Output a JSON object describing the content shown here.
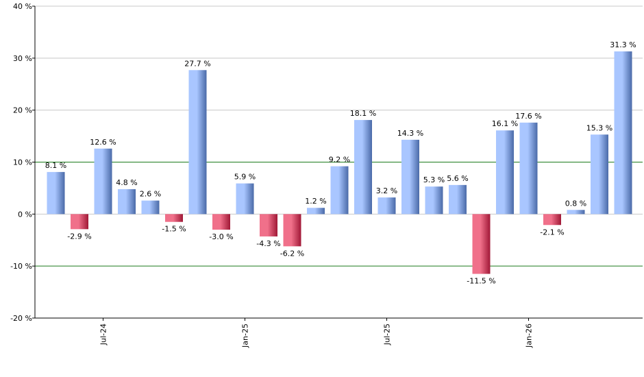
{
  "chart_data": {
    "type": "bar",
    "ylim": [
      -20,
      40
    ],
    "y_ticks": [
      -20,
      -10,
      0,
      10,
      20,
      30,
      40
    ],
    "y_tick_labels": [
      "-20 %",
      "-10 %",
      "0 %",
      "10 %",
      "20 %",
      "30 %",
      "40 %"
    ],
    "x_tick_labels": [
      {
        "label": "Jul-24",
        "index": 2
      },
      {
        "label": "Jan-25",
        "index": 8
      },
      {
        "label": "Jul-25",
        "index": 14
      },
      {
        "label": "Jan-26",
        "index": 20
      }
    ],
    "grid": {
      "horizontal": true,
      "vertical": false
    },
    "values": [
      8.1,
      -2.9,
      12.6,
      4.8,
      2.6,
      -1.5,
      27.7,
      -3.0,
      5.9,
      -4.3,
      -6.2,
      1.2,
      9.2,
      18.1,
      3.2,
      14.3,
      5.3,
      5.6,
      -11.5,
      16.1,
      17.6,
      -2.1,
      0.8,
      15.3,
      31.3
    ],
    "data_labels": [
      "8.1 %",
      "-2.9 %",
      "12.6 %",
      "4.8 %",
      "2.6 %",
      "-1.5 %",
      "27.7 %",
      "-3.0 %",
      "5.9 %",
      "-4.3 %",
      "-6.2 %",
      "1.2 %",
      "9.2 %",
      "18.1 %",
      "3.2 %",
      "14.3 %",
      "5.3 %",
      "5.6 %",
      "-11.5 %",
      "16.1 %",
      "17.6 %",
      "-2.1 %",
      "0.8 %",
      "15.3 %",
      "31.3 %"
    ],
    "colors": {
      "positive_light": "#a9c6ff",
      "positive_dark": "#4a6aa8",
      "negative_light": "#f0708a",
      "negative_dark": "#a01836",
      "gridline": "#c8c8c8",
      "reference_line": "#1a7a1a",
      "axis": "#000000"
    }
  }
}
